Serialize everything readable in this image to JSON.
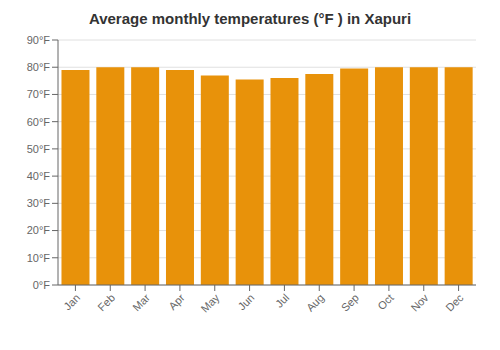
{
  "chart_data": {
    "type": "bar",
    "title": "Average monthly temperatures (°F ) in Xapuri",
    "categories": [
      "Jan",
      "Feb",
      "Mar",
      "Apr",
      "May",
      "Jun",
      "Jul",
      "Aug",
      "Sep",
      "Oct",
      "Nov",
      "Dec"
    ],
    "values": [
      79,
      80,
      80,
      79,
      77,
      75.5,
      76,
      77.5,
      79.5,
      80,
      80,
      80
    ],
    "color": "#E8920A",
    "ylim": [
      0,
      90
    ],
    "yticks": [
      {
        "value": 0,
        "label": "0°F"
      },
      {
        "value": 10,
        "label": "10°F"
      },
      {
        "value": 20,
        "label": "20°F"
      },
      {
        "value": 30,
        "label": "30°F"
      },
      {
        "value": 40,
        "label": "40°F"
      },
      {
        "value": 50,
        "label": "50°F"
      },
      {
        "value": 60,
        "label": "60°F"
      },
      {
        "value": 70,
        "label": "70°F"
      },
      {
        "value": 80,
        "label": "80°F"
      },
      {
        "value": 90,
        "label": "90°F"
      }
    ],
    "grid": true
  }
}
